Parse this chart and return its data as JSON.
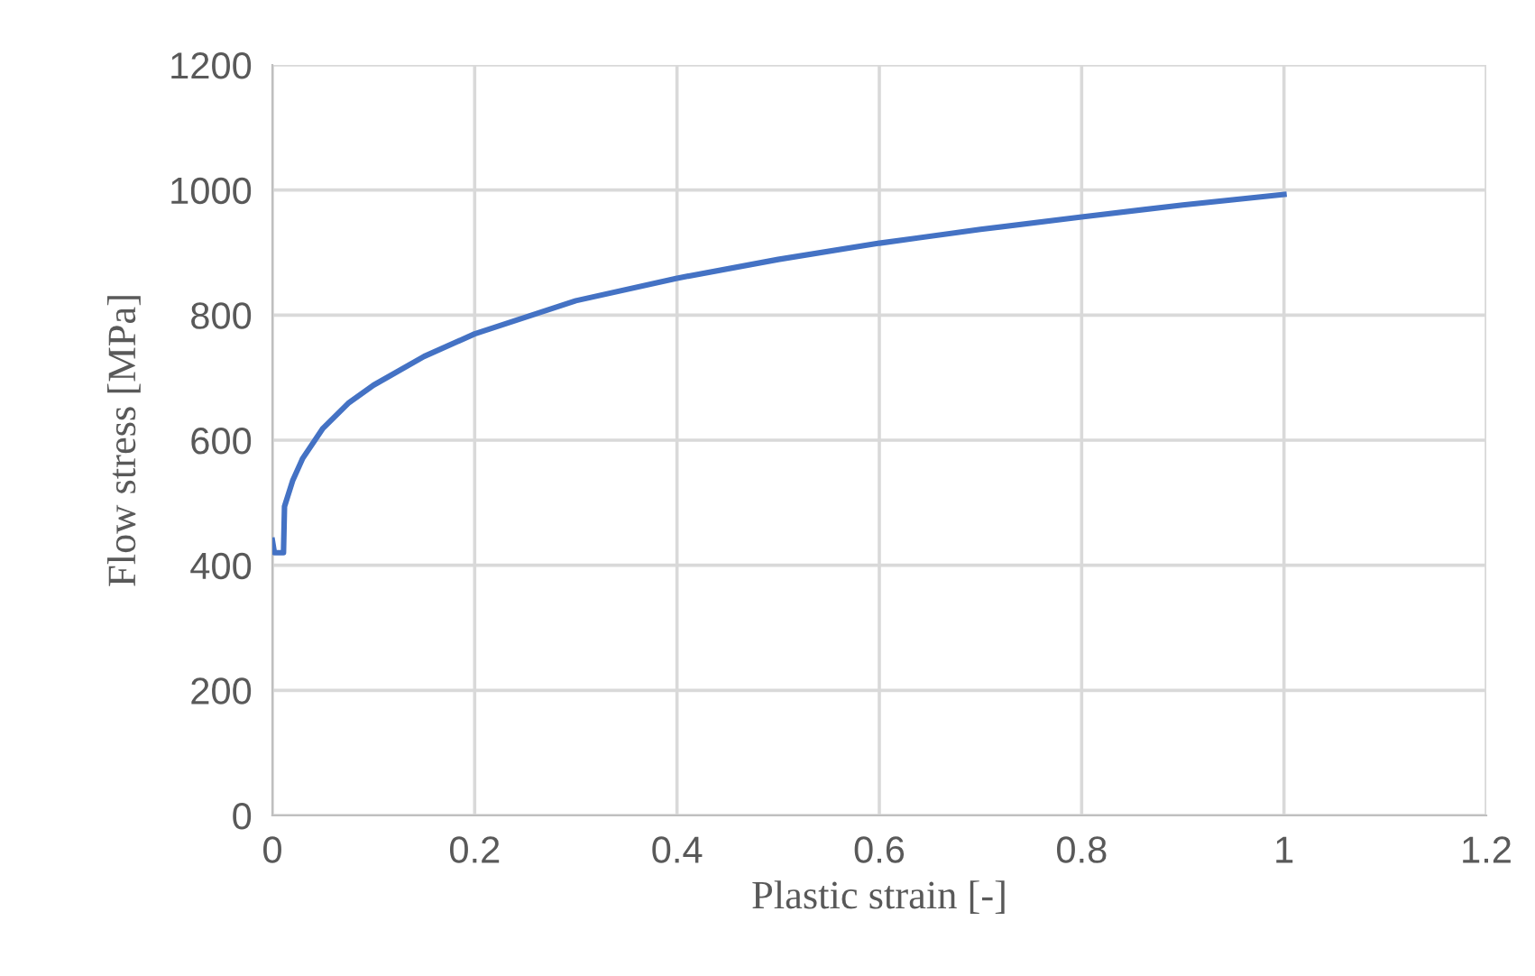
{
  "chart_data": {
    "type": "line",
    "xlabel": "Plastic strain [-]",
    "ylabel": "Flow stress [MPa]",
    "xlim": [
      0,
      1.2
    ],
    "xticks": [
      0,
      0.2,
      0.4,
      0.6,
      0.8,
      1,
      1.2
    ],
    "ylim": [
      0,
      1200
    ],
    "yticks": [
      0,
      200,
      400,
      600,
      800,
      1000,
      1200
    ],
    "grid": true,
    "marker": "none",
    "line_style": "solid",
    "series": [
      {
        "color": "#4472c4",
        "x": [
          0,
          0.002,
          0.011,
          0.012,
          0.02,
          0.03,
          0.05,
          0.075,
          0.1,
          0.15,
          0.2,
          0.3,
          0.4,
          0.5,
          0.6,
          0.7,
          0.8,
          0.9,
          1.0
        ],
        "values": [
          440,
          420,
          420,
          494,
          535,
          571,
          619,
          659,
          688,
          734,
          770,
          823,
          859,
          889,
          915,
          937,
          957,
          976,
          993
        ]
      }
    ]
  }
}
